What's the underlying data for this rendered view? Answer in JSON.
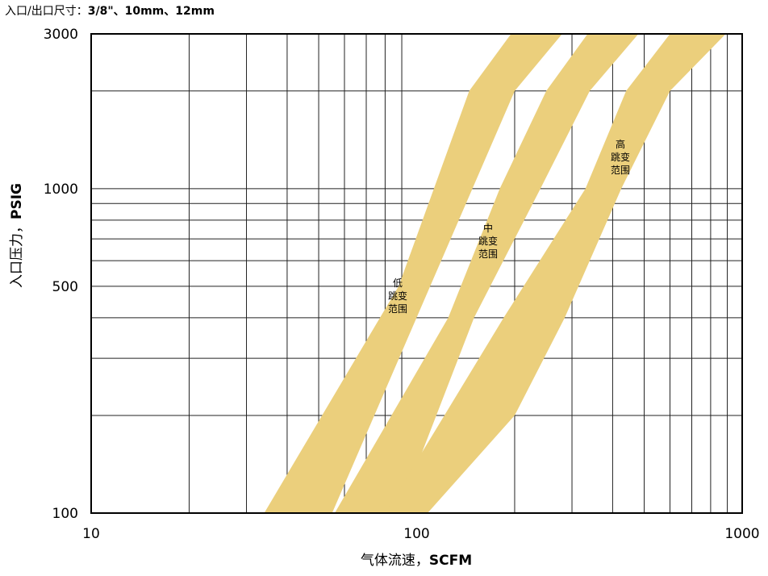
{
  "chart_data": {
    "type": "area",
    "subtitle": {
      "prefix": "入口/出口尺寸：",
      "sizes": "3/8\"、10mm、12mm"
    },
    "x_axis": {
      "label_text": "气体流速，",
      "label_unit": "SCFM",
      "scale": "log",
      "range": [
        10,
        1000
      ],
      "tick_labels": [
        "10",
        "100",
        "1000"
      ]
    },
    "y_axis": {
      "label_text": "入口压力，",
      "label_unit": "PSIG",
      "scale": "log",
      "range": [
        100,
        3000
      ],
      "tick_labels": [
        "100",
        "500",
        "1000",
        "3000"
      ]
    },
    "grid": true,
    "band_color": "#EBCF7C",
    "series": [
      {
        "name": "低跳变范围",
        "label_lines": [
          "低",
          "跳变",
          "范围"
        ],
        "left_edge": [
          [
            34,
            100
          ],
          [
            88,
            500
          ],
          [
            145,
            2000
          ],
          [
            195,
            3000
          ]
        ],
        "right_edge": [
          [
            55,
            100
          ],
          [
            110,
            500
          ],
          [
            200,
            2000
          ],
          [
            280,
            3000
          ]
        ]
      },
      {
        "name": "中跳变范围",
        "label_lines": [
          "中",
          "跳变",
          "范围"
        ],
        "left_edge": [
          [
            56,
            100
          ],
          [
            125,
            400
          ],
          [
            180,
            1000
          ],
          [
            250,
            2000
          ],
          [
            335,
            3000
          ]
        ],
        "right_edge": [
          [
            88,
            100
          ],
          [
            150,
            400
          ],
          [
            240,
            1000
          ],
          [
            340,
            2000
          ],
          [
            480,
            3000
          ]
        ]
      },
      {
        "name": "高跳变范围",
        "label_lines": [
          "高",
          "跳变",
          "范围"
        ],
        "left_edge": [
          [
            80,
            100
          ],
          [
            185,
            400
          ],
          [
            330,
            1000
          ],
          [
            440,
            2000
          ],
          [
            600,
            3000
          ]
        ],
        "right_edge": [
          [
            108,
            100
          ],
          [
            200,
            200
          ],
          [
            285,
            400
          ],
          [
            425,
            1000
          ],
          [
            600,
            2000
          ],
          [
            890,
            3000
          ]
        ]
      }
    ]
  }
}
